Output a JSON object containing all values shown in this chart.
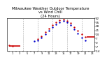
{
  "title_line1": "Milwaukee Weather Outdoor Temperature",
  "title_line2": "vs Wind Chill",
  "title_line3": "(24 Hours)",
  "title_fontsize": 3.8,
  "background_color": "#ffffff",
  "grid_color": "#999999",
  "hours": [
    0,
    1,
    2,
    3,
    4,
    5,
    6,
    7,
    8,
    9,
    10,
    11,
    12,
    13,
    14,
    15,
    16,
    17,
    18,
    19,
    20,
    21,
    22,
    23
  ],
  "outdoor_temp": [
    -5,
    -6,
    null,
    null,
    null,
    null,
    null,
    null,
    6,
    11,
    18,
    24,
    30,
    35,
    38,
    39,
    37,
    33,
    27,
    21,
    15,
    10,
    null,
    null
  ],
  "wind_chill": [
    null,
    null,
    null,
    null,
    null,
    null,
    null,
    2,
    4,
    9,
    14,
    20,
    26,
    31,
    35,
    37,
    35,
    30,
    23,
    16,
    9,
    4,
    null,
    null
  ],
  "outdoor_color": "#cc0000",
  "wind_chill_color": "#0000cc",
  "dot_size": 3,
  "line1_x_start": 0.0,
  "line1_x_end": 3.2,
  "line1_y": -6,
  "line2_x_start": 21.5,
  "line2_x_end": 23.8,
  "line2_y": 10,
  "ylim": [
    -14,
    42
  ],
  "xlim": [
    -0.5,
    23.5
  ],
  "yticks": [
    -14,
    -7,
    0,
    7,
    14,
    21,
    28,
    35,
    42
  ],
  "ytick_labels": [
    "-14",
    "-7",
    "0",
    "7",
    "14",
    "21",
    "28",
    "35",
    "42"
  ],
  "xtick_positions": [
    0,
    1,
    2,
    3,
    4,
    5,
    6,
    7,
    8,
    9,
    10,
    11,
    12,
    13,
    14,
    15,
    16,
    17,
    18,
    19,
    20,
    21,
    22,
    23
  ],
  "vgrid_positions": [
    4,
    8,
    12,
    16,
    20
  ]
}
